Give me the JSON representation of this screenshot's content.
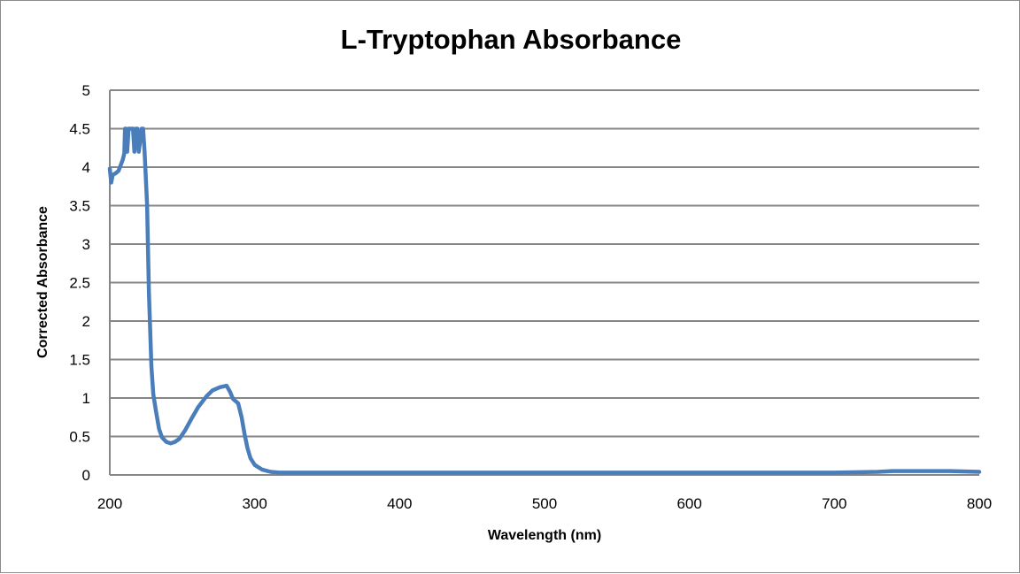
{
  "chart_data": {
    "type": "line",
    "title": "L-Tryptophan Absorbance",
    "xlabel": "Wavelength (nm)",
    "ylabel": "Corrected Absorbance",
    "xlim": [
      200,
      800
    ],
    "ylim": [
      0,
      5
    ],
    "xticks": [
      200,
      300,
      400,
      500,
      600,
      700,
      800
    ],
    "yticks": [
      0,
      0.5,
      1,
      1.5,
      2,
      2.5,
      3,
      3.5,
      4,
      4.5,
      5
    ],
    "ytick_labels": [
      "0",
      "0.5",
      "1",
      "1.5",
      "2",
      "2.5",
      "3",
      "3.5",
      "4",
      "4.5",
      "5"
    ],
    "grid": "horizontal",
    "legend": "none",
    "series": [
      {
        "name": "Corrected Absorbance",
        "color": "#4a7ebb",
        "x": [
          200,
          201,
          202,
          204,
          206,
          208,
          209,
          210,
          210.5,
          211,
          212,
          213,
          214,
          216,
          217,
          218,
          219,
          220,
          222,
          223,
          224,
          225.7,
          227,
          228.7,
          230,
          231.8,
          234,
          236,
          239,
          242,
          245,
          248,
          252,
          256,
          261,
          266.6,
          271,
          276,
          280.6,
          283,
          285,
          288.6,
          291,
          293,
          295,
          297,
          300,
          305,
          311,
          317,
          350,
          400,
          500,
          600,
          700,
          730,
          740,
          760,
          780,
          800
        ],
        "y": [
          3.98,
          3.8,
          3.9,
          3.92,
          3.95,
          4.05,
          4.1,
          4.18,
          4.5,
          4.5,
          4.2,
          4.5,
          4.5,
          4.5,
          4.2,
          4.5,
          4.5,
          4.2,
          4.5,
          4.5,
          4.2,
          3.52,
          2.37,
          1.41,
          1.05,
          0.84,
          0.6,
          0.49,
          0.43,
          0.41,
          0.43,
          0.47,
          0.58,
          0.72,
          0.88,
          1.02,
          1.1,
          1.14,
          1.16,
          1.08,
          0.99,
          0.93,
          0.75,
          0.53,
          0.35,
          0.22,
          0.13,
          0.07,
          0.04,
          0.03,
          0.03,
          0.03,
          0.03,
          0.03,
          0.03,
          0.04,
          0.05,
          0.05,
          0.05,
          0.04
        ]
      }
    ]
  }
}
